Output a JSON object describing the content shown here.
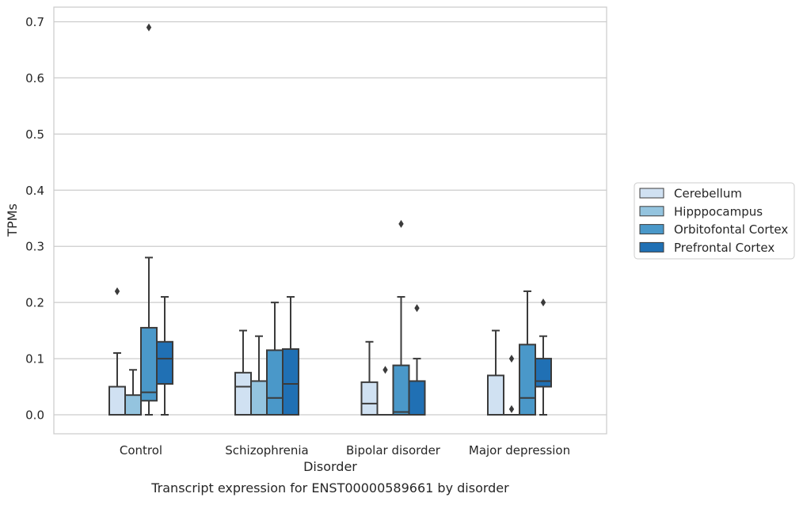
{
  "chart_data": {
    "type": "box",
    "title": "",
    "caption": "Transcript expression for ENST00000589661 by disorder",
    "xlabel": "Disorder",
    "ylabel": "TPMs",
    "ylim": [
      -0.034,
      0.726
    ],
    "yticks": [
      "0.0",
      "0.1",
      "0.2",
      "0.3",
      "0.4",
      "0.5",
      "0.6",
      "0.7"
    ],
    "grid": "horizontal",
    "legend_position": "right",
    "categories": [
      "Control",
      "Schizophrenia",
      "Bipolar disorder",
      "Major depression"
    ],
    "series": [
      {
        "name": "Cerebellum",
        "color": "#d0e1f2",
        "boxes": [
          {
            "whisker_low": 0.0,
            "q1": 0.0,
            "median": 0.0,
            "q3": 0.05,
            "whisker_high": 0.11,
            "outliers": [
              0.22
            ]
          },
          {
            "whisker_low": 0.0,
            "q1": 0.0,
            "median": 0.05,
            "q3": 0.075,
            "whisker_high": 0.15,
            "outliers": []
          },
          {
            "whisker_low": 0.0,
            "q1": 0.0,
            "median": 0.02,
            "q3": 0.058,
            "whisker_high": 0.13,
            "outliers": []
          },
          {
            "whisker_low": 0.0,
            "q1": 0.0,
            "median": 0.0,
            "q3": 0.07,
            "whisker_high": 0.15,
            "outliers": []
          }
        ]
      },
      {
        "name": "Hipppocampus",
        "color": "#94c4df",
        "boxes": [
          {
            "whisker_low": 0.0,
            "q1": 0.0,
            "median": 0.0,
            "q3": 0.035,
            "whisker_high": 0.08,
            "outliers": []
          },
          {
            "whisker_low": 0.0,
            "q1": 0.0,
            "median": 0.0,
            "q3": 0.06,
            "whisker_high": 0.14,
            "outliers": []
          },
          {
            "whisker_low": 0.0,
            "q1": 0.0,
            "median": 0.0,
            "q3": 0.0,
            "whisker_high": 0.0,
            "outliers": [
              0.08
            ]
          },
          {
            "whisker_low": 0.0,
            "q1": 0.0,
            "median": 0.0,
            "q3": 0.0,
            "whisker_high": 0.0,
            "outliers": [
              0.01,
              0.1
            ]
          }
        ]
      },
      {
        "name": "Orbitofontal Cortex",
        "color": "#4a98c9",
        "boxes": [
          {
            "whisker_low": 0.0,
            "q1": 0.025,
            "median": 0.04,
            "q3": 0.155,
            "whisker_high": 0.28,
            "outliers": [
              0.69
            ]
          },
          {
            "whisker_low": 0.0,
            "q1": 0.0,
            "median": 0.03,
            "q3": 0.115,
            "whisker_high": 0.2,
            "outliers": []
          },
          {
            "whisker_low": 0.0,
            "q1": 0.0,
            "median": 0.005,
            "q3": 0.088,
            "whisker_high": 0.21,
            "outliers": [
              0.34
            ]
          },
          {
            "whisker_low": 0.0,
            "q1": 0.0,
            "median": 0.03,
            "q3": 0.125,
            "whisker_high": 0.22,
            "outliers": []
          }
        ]
      },
      {
        "name": "Prefrontal Cortex",
        "color": "#2070b4",
        "boxes": [
          {
            "whisker_low": 0.0,
            "q1": 0.055,
            "median": 0.1,
            "q3": 0.13,
            "whisker_high": 0.21,
            "outliers": []
          },
          {
            "whisker_low": 0.0,
            "q1": 0.0,
            "median": 0.055,
            "q3": 0.117,
            "whisker_high": 0.21,
            "outliers": []
          },
          {
            "whisker_low": 0.0,
            "q1": 0.0,
            "median": 0.0,
            "q3": 0.06,
            "whisker_high": 0.1,
            "outliers": [
              0.19
            ]
          },
          {
            "whisker_low": 0.0,
            "q1": 0.05,
            "median": 0.06,
            "q3": 0.1,
            "whisker_high": 0.14,
            "outliers": [
              0.2
            ]
          }
        ]
      }
    ]
  }
}
